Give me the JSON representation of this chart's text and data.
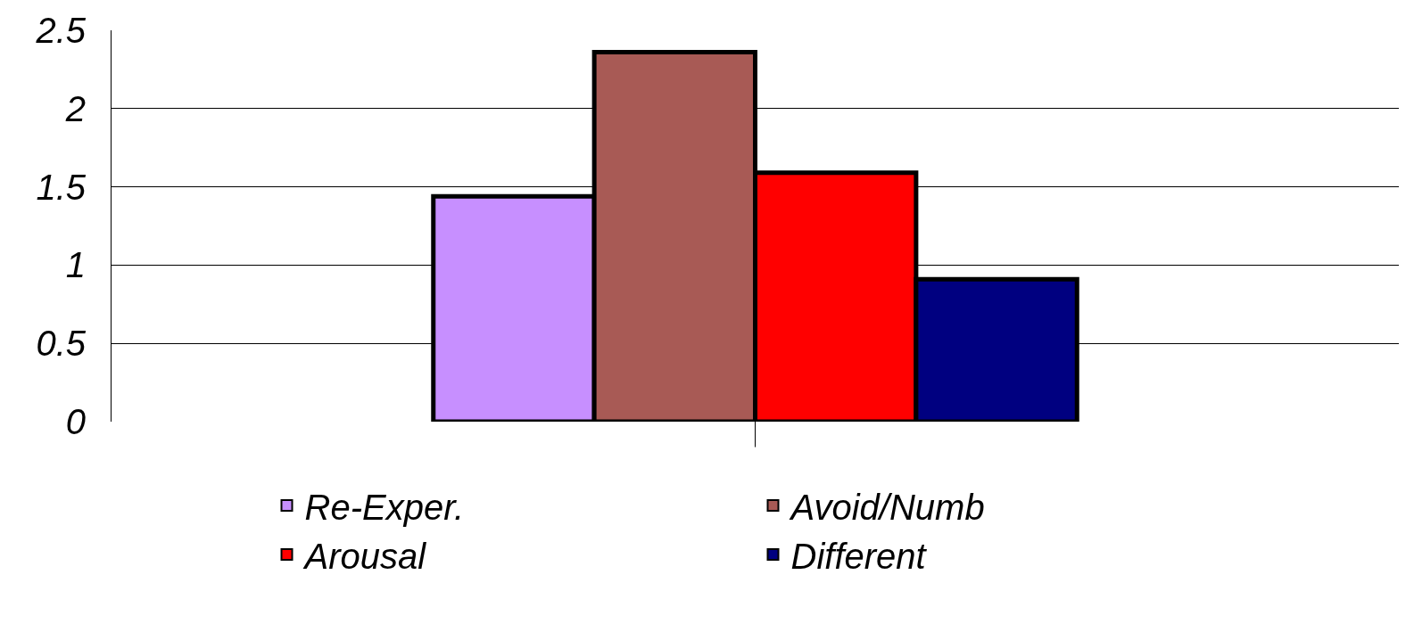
{
  "chart_data": {
    "type": "bar",
    "categories": [
      null
    ],
    "series": [
      {
        "name": "Re-Exper.",
        "color": "#c78fff",
        "values": [
          1.44
        ]
      },
      {
        "name": "Avoid/Numb",
        "color": "#a85a55",
        "values": [
          2.36
        ]
      },
      {
        "name": "Arousal",
        "color": "#ff0000",
        "values": [
          1.59
        ]
      },
      {
        "name": "Different",
        "color": "#000080",
        "values": [
          0.91
        ]
      }
    ],
    "ylim": [
      0,
      2.5
    ],
    "yticks": [
      0,
      0.5,
      1,
      1.5,
      2,
      2.5
    ],
    "grid": "y",
    "legend": "bottom",
    "tick_labels": "y"
  }
}
